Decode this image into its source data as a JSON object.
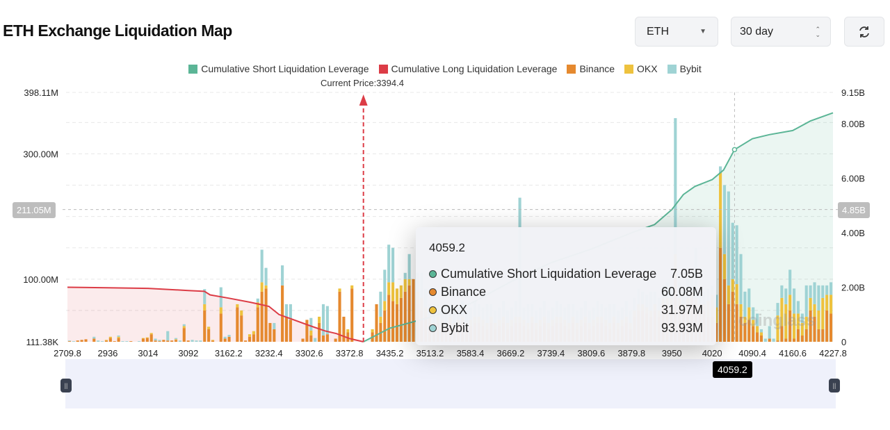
{
  "header": {
    "title": "ETH Exchange Liquidation Map",
    "symbol": "ETH",
    "period": "30 day",
    "refresh_icon": "refresh-icon"
  },
  "colors": {
    "short": "#5bb596",
    "long": "#dc3c46",
    "binance": "#e5892f",
    "okx": "#eec23e",
    "bybit": "#9fd3d4"
  },
  "chart_data": {
    "type": "bar",
    "title": "ETH Exchange Liquidation Map",
    "legend": [
      "Cumulative Short Liquidation Leverage",
      "Cumulative Long Liquidation Leverage",
      "Binance",
      "OKX",
      "Bybit"
    ],
    "legend_position": "top",
    "current_price_label": "Current Price:3394.4",
    "current_price": 3394.4,
    "x_ticks": [
      "2709.8",
      "2936",
      "3014",
      "3092",
      "3162.2",
      "3232.4",
      "3302.6",
      "3372.8",
      "3435.2",
      "3513.2",
      "3583.4",
      "3669.2",
      "3739.4",
      "3809.6",
      "3879.8",
      "3950",
      "4020",
      "4090.4",
      "4160.6",
      "4227.8"
    ],
    "y_left_ticks": [
      "111.38K",
      "100.00M",
      "300.00M",
      "398.11M"
    ],
    "y_left_range_M": [
      0,
      398.11
    ],
    "y_right_ticks": [
      "0",
      "2.00B",
      "4.00B",
      "6.00B",
      "8.00B",
      "9.15B"
    ],
    "y_right_range_B": [
      0,
      9.15
    ],
    "grid": true,
    "bar_series_order": [
      "Binance",
      "OKX",
      "Bybit"
    ],
    "bars_M": [
      [
        1,
        0,
        1
      ],
      [
        0,
        0,
        1
      ],
      [
        2,
        0,
        0
      ],
      [
        3,
        0,
        0
      ],
      [
        4,
        0,
        0
      ],
      [
        0,
        0,
        0
      ],
      [
        5,
        0,
        3
      ],
      [
        0,
        0,
        2
      ],
      [
        0,
        0,
        1
      ],
      [
        2,
        1,
        0
      ],
      [
        6,
        2,
        0
      ],
      [
        1,
        0,
        0
      ],
      [
        6,
        2,
        2
      ],
      [
        0,
        0,
        1
      ],
      [
        0,
        0,
        1
      ],
      [
        1,
        0,
        0
      ],
      [
        0,
        0,
        0
      ],
      [
        0,
        0,
        1
      ],
      [
        5,
        1,
        0
      ],
      [
        6,
        1,
        0
      ],
      [
        12,
        2,
        0
      ],
      [
        2,
        0,
        3
      ],
      [
        1,
        0,
        2
      ],
      [
        3,
        0,
        0
      ],
      [
        2,
        0,
        15
      ],
      [
        2,
        0,
        0
      ],
      [
        3,
        1,
        2
      ],
      [
        0,
        0,
        2
      ],
      [
        22,
        3,
        3
      ],
      [
        2,
        0,
        0
      ],
      [
        0,
        0,
        3
      ],
      [
        0,
        0,
        2
      ],
      [
        0,
        0,
        2
      ],
      [
        50,
        10,
        24
      ],
      [
        20,
        4,
        0
      ],
      [
        2,
        1,
        0
      ],
      [
        0,
        0,
        0
      ],
      [
        45,
        10,
        32
      ],
      [
        5,
        0,
        3
      ],
      [
        8,
        0,
        3
      ],
      [
        0,
        0,
        0
      ],
      [
        55,
        5,
        0
      ],
      [
        42,
        8,
        0
      ],
      [
        2,
        0,
        0
      ],
      [
        8,
        4,
        0
      ],
      [
        12,
        5,
        0
      ],
      [
        55,
        8,
        6
      ],
      [
        80,
        15,
        52
      ],
      [
        85,
        5,
        28
      ],
      [
        30,
        0,
        0
      ],
      [
        20,
        0,
        10
      ],
      [
        0,
        0,
        0
      ],
      [
        90,
        0,
        32
      ],
      [
        40,
        0,
        20
      ],
      [
        35,
        0,
        25
      ],
      [
        0,
        0,
        0
      ],
      [
        0,
        0,
        0
      ],
      [
        5,
        0,
        0
      ],
      [
        35,
        0,
        0
      ],
      [
        10,
        8,
        20
      ],
      [
        0,
        0,
        6
      ],
      [
        30,
        10,
        0
      ],
      [
        10,
        0,
        50
      ],
      [
        12,
        0,
        45
      ],
      [
        0,
        0,
        0
      ],
      [
        5,
        0,
        0
      ],
      [
        80,
        5,
        0
      ],
      [
        40,
        0,
        0
      ],
      [
        15,
        5,
        0
      ],
      [
        85,
        5,
        0
      ],
      [
        0,
        0,
        0
      ],
      [
        0,
        0,
        0
      ],
      [
        0,
        0,
        0
      ],
      [
        0,
        0,
        0
      ],
      [
        15,
        5,
        0
      ],
      [
        60,
        0,
        0
      ],
      [
        30,
        10,
        40
      ],
      [
        50,
        15,
        50
      ],
      [
        75,
        20,
        60
      ],
      [
        65,
        30,
        55
      ],
      [
        60,
        25,
        0
      ],
      [
        70,
        20,
        0
      ],
      [
        80,
        20,
        10
      ],
      [
        90,
        10,
        40
      ],
      [
        100,
        0,
        0
      ],
      [
        60,
        20,
        30
      ],
      [
        50,
        20,
        40
      ],
      [
        40,
        15,
        30
      ],
      [
        30,
        10,
        20
      ],
      [
        20,
        10,
        30
      ],
      [
        30,
        10,
        20
      ],
      [
        25,
        10,
        20
      ],
      [
        20,
        10,
        30
      ],
      [
        30,
        10,
        20
      ],
      [
        20,
        10,
        20
      ],
      [
        25,
        10,
        20
      ],
      [
        30,
        10,
        25
      ],
      [
        20,
        10,
        20
      ],
      [
        25,
        10,
        20
      ],
      [
        30,
        10,
        25
      ],
      [
        30,
        10,
        20
      ],
      [
        25,
        10,
        20
      ],
      [
        20,
        10,
        30
      ],
      [
        30,
        10,
        20
      ],
      [
        20,
        10,
        20
      ],
      [
        25,
        10,
        20
      ],
      [
        30,
        10,
        25
      ],
      [
        20,
        10,
        20
      ],
      [
        25,
        10,
        20
      ],
      [
        30,
        10,
        25
      ],
      [
        30,
        10,
        190
      ],
      [
        25,
        10,
        20
      ],
      [
        20,
        10,
        30
      ],
      [
        30,
        10,
        20
      ],
      [
        20,
        10,
        20
      ],
      [
        25,
        10,
        20
      ],
      [
        30,
        10,
        25
      ],
      [
        20,
        10,
        20
      ],
      [
        25,
        10,
        20
      ],
      [
        30,
        10,
        25
      ],
      [
        30,
        10,
        20
      ],
      [
        25,
        10,
        20
      ],
      [
        20,
        10,
        30
      ],
      [
        30,
        10,
        20
      ],
      [
        20,
        10,
        20
      ],
      [
        25,
        10,
        20
      ],
      [
        30,
        10,
        25
      ],
      [
        20,
        10,
        20
      ],
      [
        25,
        10,
        20
      ],
      [
        30,
        10,
        25
      ],
      [
        30,
        10,
        20
      ],
      [
        25,
        10,
        20
      ],
      [
        20,
        10,
        30
      ],
      [
        30,
        10,
        20
      ],
      [
        20,
        10,
        20
      ],
      [
        25,
        10,
        20
      ],
      [
        30,
        10,
        25
      ],
      [
        20,
        10,
        20
      ],
      [
        40,
        10,
        20
      ],
      [
        50,
        10,
        25
      ],
      [
        50,
        10,
        20
      ],
      [
        45,
        10,
        20
      ],
      [
        40,
        10,
        30
      ],
      [
        50,
        10,
        20
      ],
      [
        40,
        10,
        20
      ],
      [
        60,
        10,
        20
      ],
      [
        60,
        10,
        25
      ],
      [
        60,
        10,
        20
      ],
      [
        100,
        40,
        217
      ],
      [
        60,
        10,
        25
      ],
      [
        50,
        10,
        20
      ],
      [
        60,
        10,
        30
      ],
      [
        70,
        10,
        20
      ],
      [
        60,
        10,
        80
      ],
      [
        50,
        10,
        20
      ],
      [
        50,
        10,
        20
      ],
      [
        40,
        25,
        20
      ],
      [
        40,
        35,
        15
      ],
      [
        30,
        25,
        20
      ],
      [
        150,
        120,
        10
      ],
      [
        100,
        40,
        110
      ],
      [
        60,
        30,
        150
      ],
      [
        80,
        20,
        90
      ],
      [
        60,
        32,
        94
      ],
      [
        40,
        20,
        80
      ],
      [
        30,
        10,
        40
      ],
      [
        35,
        20,
        30
      ],
      [
        25,
        10,
        20
      ],
      [
        15,
        10,
        20
      ],
      [
        10,
        5,
        5
      ],
      [
        0,
        0,
        5
      ],
      [
        5,
        0,
        20
      ],
      [
        0,
        0,
        5
      ],
      [
        2,
        40,
        20
      ],
      [
        25,
        45,
        20
      ],
      [
        5,
        55,
        25
      ],
      [
        50,
        25,
        40
      ],
      [
        5,
        40,
        40
      ],
      [
        20,
        25,
        20
      ],
      [
        10,
        20,
        15
      ],
      [
        20,
        20,
        50
      ],
      [
        50,
        20,
        20
      ],
      [
        40,
        20,
        35
      ],
      [
        20,
        30,
        40
      ],
      [
        20,
        50,
        20
      ],
      [
        50,
        25,
        15
      ],
      [
        45,
        30,
        20
      ]
    ],
    "cumulative_long_B": [
      [
        2709.8,
        2.0
      ],
      [
        2936,
        1.98
      ],
      [
        3014,
        1.96
      ],
      [
        3092,
        1.88
      ],
      [
        3120,
        1.85
      ],
      [
        3130,
        1.72
      ],
      [
        3162.2,
        1.6
      ],
      [
        3200,
        1.45
      ],
      [
        3232.4,
        1.3
      ],
      [
        3250,
        1.0
      ],
      [
        3270,
        0.85
      ],
      [
        3302.6,
        0.6
      ],
      [
        3330,
        0.4
      ],
      [
        3350,
        0.3
      ],
      [
        3372.8,
        0.12
      ],
      [
        3394.4,
        0
      ]
    ],
    "cumulative_short_B": [
      [
        3394.4,
        0
      ],
      [
        3435.2,
        0.5
      ],
      [
        3513.2,
        0.9
      ],
      [
        3583.4,
        1.4
      ],
      [
        3669.2,
        2.2
      ],
      [
        3739.4,
        2.9
      ],
      [
        3809.6,
        3.4
      ],
      [
        3879.8,
        4.0
      ],
      [
        3920,
        4.3
      ],
      [
        3950,
        4.85
      ],
      [
        3970,
        5.4
      ],
      [
        3990,
        5.7
      ],
      [
        4020,
        5.95
      ],
      [
        4040,
        6.3
      ],
      [
        4059.2,
        7.05
      ],
      [
        4090.4,
        7.45
      ],
      [
        4120,
        7.6
      ],
      [
        4160.6,
        7.75
      ],
      [
        4190,
        8.1
      ],
      [
        4227.8,
        8.4
      ]
    ]
  },
  "crosshair": {
    "x_label": "4059.2",
    "y_left_label": "211.05M",
    "y_right_label": "4.85B"
  },
  "tooltip": {
    "title": "4059.2",
    "rows": [
      {
        "label": "Cumulative Short Liquidation Leverage",
        "value": "7.05B",
        "color": "#5bb596"
      },
      {
        "label": "Binance",
        "value": "60.08M",
        "color": "#e5892f"
      },
      {
        "label": "OKX",
        "value": "31.97M",
        "color": "#eec23e"
      },
      {
        "label": "Bybit",
        "value": "93.93M",
        "color": "#9fd3d4"
      }
    ]
  },
  "watermark": "coinglass"
}
